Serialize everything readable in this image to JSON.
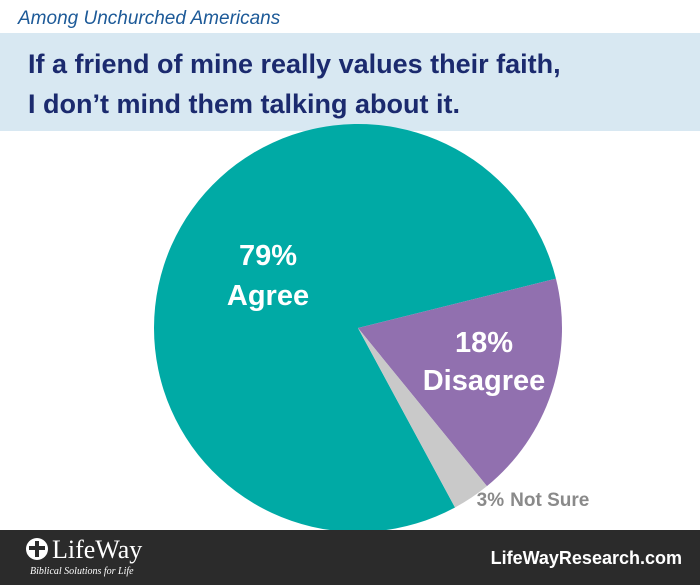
{
  "chart_data": {
    "type": "pie",
    "subtitle": "Among Unchurched Americans",
    "title": [
      "If a friend of mine really values their faith,",
      "I don’t mind them talking about it."
    ],
    "categories": [
      "Agree",
      "Disagree",
      "Not Sure"
    ],
    "values": [
      79,
      18,
      3
    ],
    "value_labels": [
      "79%",
      "18%",
      "3%"
    ],
    "colors": [
      "#00aaa5",
      "#9170af",
      "#c9c9c9"
    ]
  },
  "footer": {
    "logo": "LifeWay",
    "tagline": "Biblical Solutions for Life",
    "url": "LifeWayResearch.com"
  }
}
